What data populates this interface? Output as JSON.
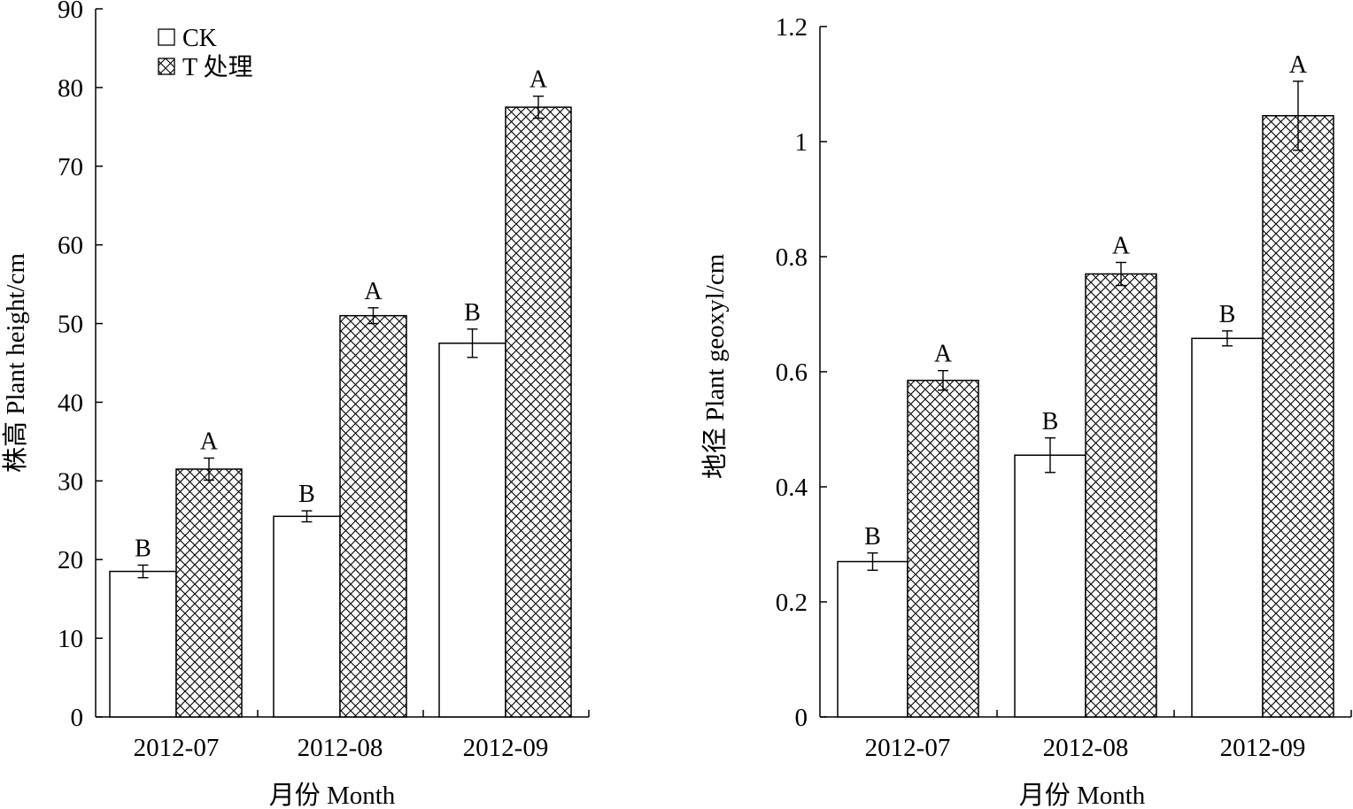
{
  "chart_data": [
    {
      "type": "bar",
      "categories": [
        "2012-07",
        "2012-08",
        "2012-09"
      ],
      "series": [
        {
          "name": "CK",
          "values": [
            18.5,
            25.5,
            47.5
          ],
          "errors": [
            0.8,
            0.7,
            1.8
          ],
          "labels": [
            "B",
            "B",
            "B"
          ]
        },
        {
          "name": "T 处理",
          "values": [
            31.5,
            51.0,
            77.5
          ],
          "errors": [
            1.4,
            1.0,
            1.4
          ],
          "labels": [
            "A",
            "A",
            "A"
          ]
        }
      ],
      "xlabel": "月份 Month",
      "ylabel": "株高 Plant height/cm",
      "ylim": [
        0,
        90
      ],
      "yticks": [
        "0",
        "10",
        "20",
        "30",
        "40",
        "50",
        "60",
        "70",
        "80",
        "90"
      ],
      "legend": "top-left",
      "grid": false
    },
    {
      "type": "bar",
      "categories": [
        "2012-07",
        "2012-08",
        "2012-09"
      ],
      "series": [
        {
          "name": "CK",
          "values": [
            0.27,
            0.455,
            0.658
          ],
          "errors": [
            0.015,
            0.03,
            0.013
          ],
          "labels": [
            "B",
            "B",
            "B"
          ]
        },
        {
          "name": "T 处理",
          "values": [
            0.585,
            0.77,
            1.045
          ],
          "errors": [
            0.017,
            0.02,
            0.06
          ],
          "labels": [
            "A",
            "A",
            "A"
          ]
        }
      ],
      "xlabel": "月份 Month",
      "ylabel": "地径 Plant geoxyl/cm",
      "ylim": [
        0,
        1.2
      ],
      "yticks": [
        "0",
        "0.2",
        "0.4",
        "0.6",
        "0.8",
        "1",
        "1.2"
      ],
      "legend": "none",
      "grid": false
    }
  ]
}
